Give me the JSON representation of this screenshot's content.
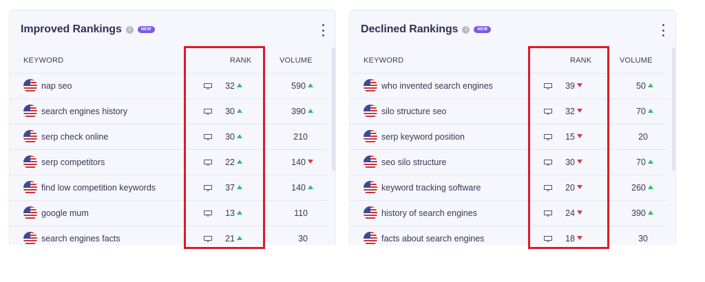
{
  "colors": {
    "up": "#2fbf71",
    "down": "#d73a49",
    "badge": "#7b5ae6",
    "highlight": "#dd1a26"
  },
  "improved": {
    "title": "Improved Rankings",
    "badge": "NEW",
    "info": "i",
    "headers": {
      "keyword": "KEYWORD",
      "rank": "RANK",
      "volume": "VOLUME"
    },
    "rows": [
      {
        "keyword": "nap seo",
        "rank": "32",
        "rank_trend": "up",
        "volume": "590",
        "volume_trend": "up"
      },
      {
        "keyword": "search engines history",
        "rank": "30",
        "rank_trend": "up",
        "volume": "390",
        "volume_trend": "up"
      },
      {
        "keyword": "serp check online",
        "rank": "30",
        "rank_trend": "up",
        "volume": "210",
        "volume_trend": "none"
      },
      {
        "keyword": "serp competitors",
        "rank": "22",
        "rank_trend": "up",
        "volume": "140",
        "volume_trend": "down"
      },
      {
        "keyword": "find low competition keywords",
        "rank": "37",
        "rank_trend": "up",
        "volume": "140",
        "volume_trend": "up"
      },
      {
        "keyword": "google mum",
        "rank": "13",
        "rank_trend": "up",
        "volume": "110",
        "volume_trend": "none"
      },
      {
        "keyword": "search engines facts",
        "rank": "21",
        "rank_trend": "up",
        "volume": "30",
        "volume_trend": "none"
      }
    ]
  },
  "declined": {
    "title": "Declined Rankings",
    "badge": "NEW",
    "info": "i",
    "headers": {
      "keyword": "KEYWORD",
      "rank": "RANK",
      "volume": "VOLUME"
    },
    "rows": [
      {
        "keyword": "who invented search engines",
        "rank": "39",
        "rank_trend": "down",
        "volume": "50",
        "volume_trend": "up"
      },
      {
        "keyword": "silo structure seo",
        "rank": "32",
        "rank_trend": "down",
        "volume": "70",
        "volume_trend": "up"
      },
      {
        "keyword": "serp keyword position",
        "rank": "15",
        "rank_trend": "down",
        "volume": "20",
        "volume_trend": "none"
      },
      {
        "keyword": "seo silo structure",
        "rank": "30",
        "rank_trend": "down",
        "volume": "70",
        "volume_trend": "up"
      },
      {
        "keyword": "keyword tracking software",
        "rank": "20",
        "rank_trend": "down",
        "volume": "260",
        "volume_trend": "up"
      },
      {
        "keyword": "history of search engines",
        "rank": "24",
        "rank_trend": "down",
        "volume": "390",
        "volume_trend": "up"
      },
      {
        "keyword": "facts about search engines",
        "rank": "18",
        "rank_trend": "down",
        "volume": "30",
        "volume_trend": "none"
      }
    ]
  },
  "icons": {
    "flag": "us-flag-icon",
    "device": "desktop-icon",
    "menu": "kebab-menu-icon",
    "info": "info-icon"
  }
}
